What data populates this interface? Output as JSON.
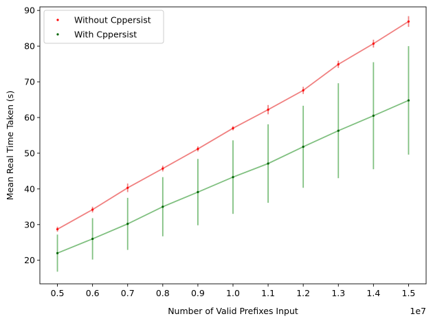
{
  "chart_data": {
    "type": "line",
    "title": "",
    "xlabel": "Number of Valid Prefixes Input",
    "ylabel": "Mean Real Time Taken (s)",
    "x_offset_label": "1e7",
    "x": [
      0.5,
      0.6,
      0.7,
      0.8,
      0.9,
      1.0,
      1.1,
      1.2,
      1.3,
      1.4,
      1.5
    ],
    "x_tick_labels": [
      "0.5",
      "0.6",
      "0.7",
      "0.8",
      "0.9",
      "1.0",
      "1.1",
      "1.2",
      "1.3",
      "1.4",
      "1.5"
    ],
    "xlim": [
      0.45,
      1.55
    ],
    "ylim": [
      13.4,
      91
    ],
    "y_ticks": [
      20,
      30,
      40,
      50,
      60,
      70,
      80,
      90
    ],
    "y_tick_labels": [
      "20",
      "30",
      "40",
      "50",
      "60",
      "70",
      "80",
      "90"
    ],
    "grid": false,
    "legend_position": "top-left",
    "series": [
      {
        "name": "Without Cppersist",
        "color": "#ff0000",
        "line_color": "#f08080",
        "values": [
          28.7,
          34.2,
          40.3,
          45.7,
          51.2,
          57.0,
          62.2,
          67.6,
          74.9,
          80.7,
          86.9
        ],
        "errors": [
          0.7,
          0.8,
          1.2,
          0.8,
          0.7,
          0.6,
          1.3,
          1.0,
          1.0,
          1.1,
          1.5
        ]
      },
      {
        "name": "With Cppersist",
        "color": "#006400",
        "line_color": "#80c080",
        "values": [
          22.0,
          26.0,
          30.2,
          35.0,
          39.1,
          43.3,
          47.1,
          51.8,
          56.3,
          60.5,
          64.8
        ],
        "errors": [
          5.2,
          5.8,
          7.3,
          8.3,
          9.3,
          10.3,
          11.0,
          11.5,
          13.3,
          15.0,
          15.2
        ]
      }
    ]
  }
}
